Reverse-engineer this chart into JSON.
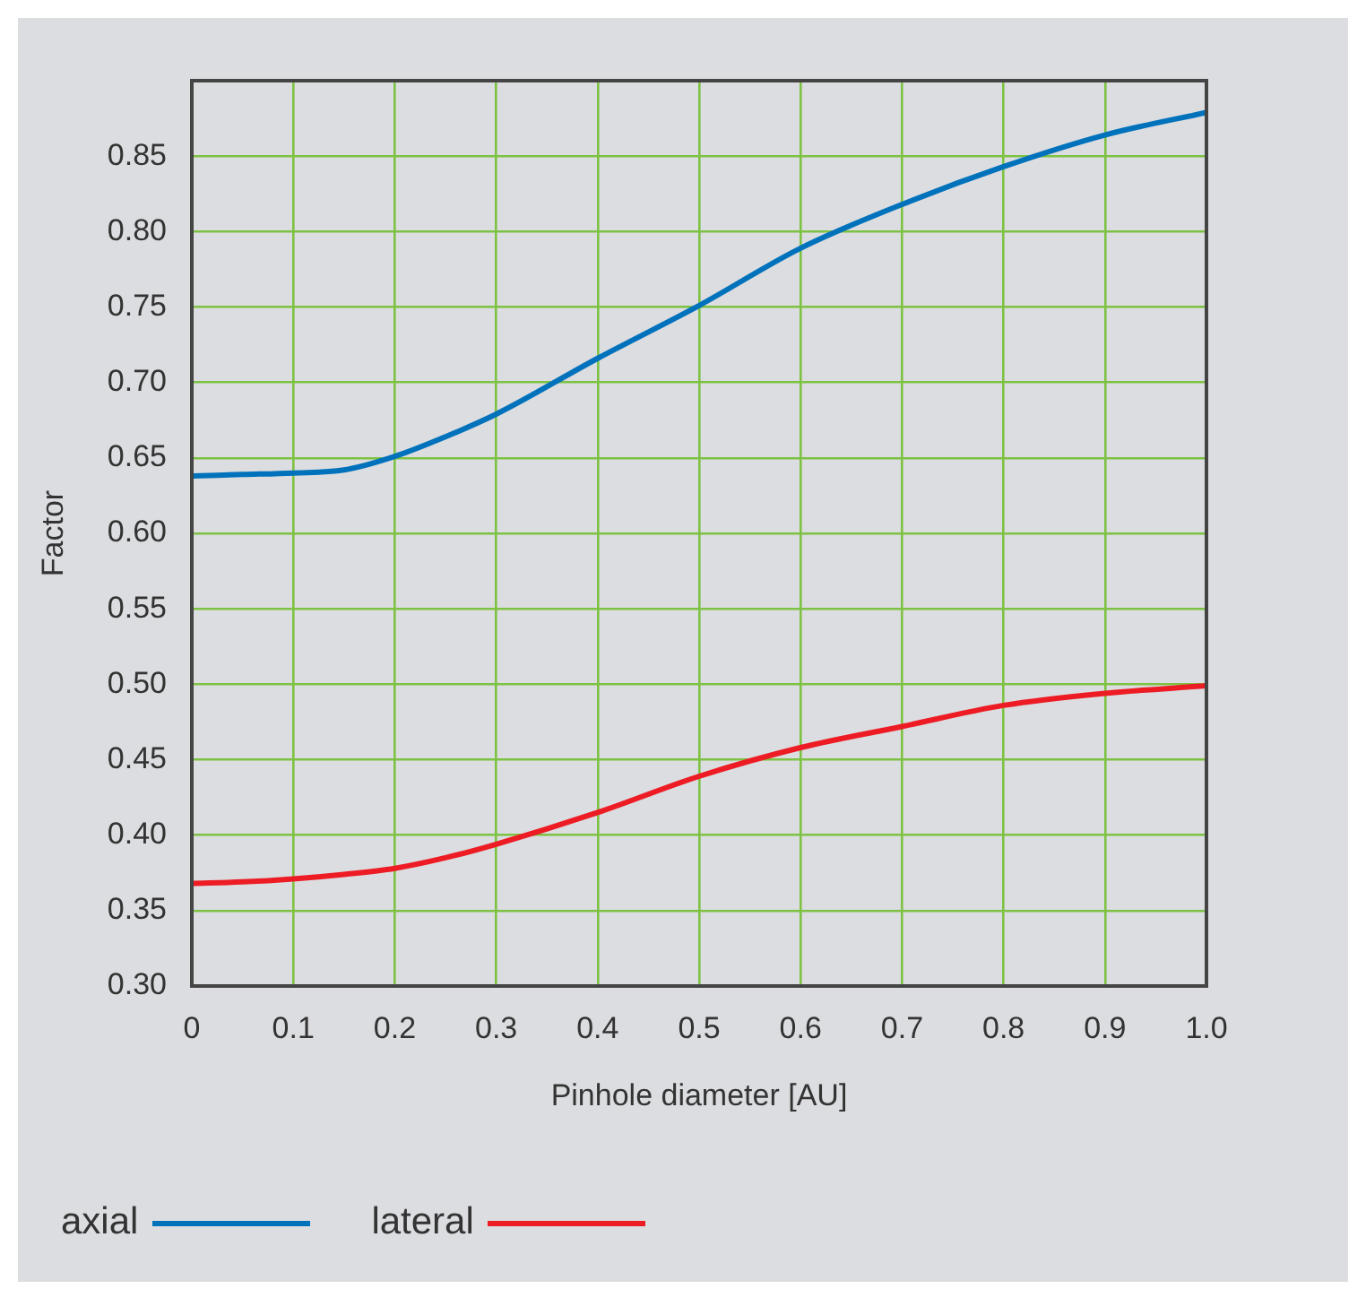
{
  "chart_data": {
    "type": "line",
    "xlabel": "Pinhole diameter [AU]",
    "ylabel": "Factor",
    "x": [
      0,
      0.05,
      0.1,
      0.15,
      0.2,
      0.25,
      0.3,
      0.4,
      0.5,
      0.6,
      0.7,
      0.8,
      0.9,
      1.0
    ],
    "series": [
      {
        "name": "axial",
        "color": "#0072bc",
        "values": [
          0.638,
          0.639,
          0.64,
          0.642,
          0.651,
          0.664,
          0.679,
          0.716,
          0.751,
          0.789,
          0.818,
          0.843,
          0.864,
          0.879
        ]
      },
      {
        "name": "lateral",
        "color": "#ed1c24",
        "values": [
          0.368,
          0.369,
          0.371,
          0.374,
          0.378,
          0.385,
          0.394,
          0.415,
          0.439,
          0.458,
          0.472,
          0.486,
          0.494,
          0.499
        ]
      }
    ],
    "xlim": [
      0,
      1.0
    ],
    "ylim": [
      0.3,
      0.9
    ],
    "xticks": [
      0,
      0.1,
      0.2,
      0.3,
      0.4,
      0.5,
      0.6,
      0.7,
      0.8,
      0.9,
      {
        "value": 1.0,
        "label": "1.0"
      }
    ],
    "yticks": [
      {
        "value": 0.3,
        "label": "0.30"
      },
      0.35,
      {
        "value": 0.4,
        "label": "0.40"
      },
      0.45,
      {
        "value": 0.5,
        "label": "0.50"
      },
      0.55,
      {
        "value": 0.6,
        "label": "0.60"
      },
      0.65,
      {
        "value": 0.7,
        "label": "0.70"
      },
      0.75,
      {
        "value": 0.8,
        "label": "0.80"
      },
      0.85
    ],
    "grid": true,
    "legend": "bottom left",
    "marker": "none",
    "line_style": "solid"
  }
}
